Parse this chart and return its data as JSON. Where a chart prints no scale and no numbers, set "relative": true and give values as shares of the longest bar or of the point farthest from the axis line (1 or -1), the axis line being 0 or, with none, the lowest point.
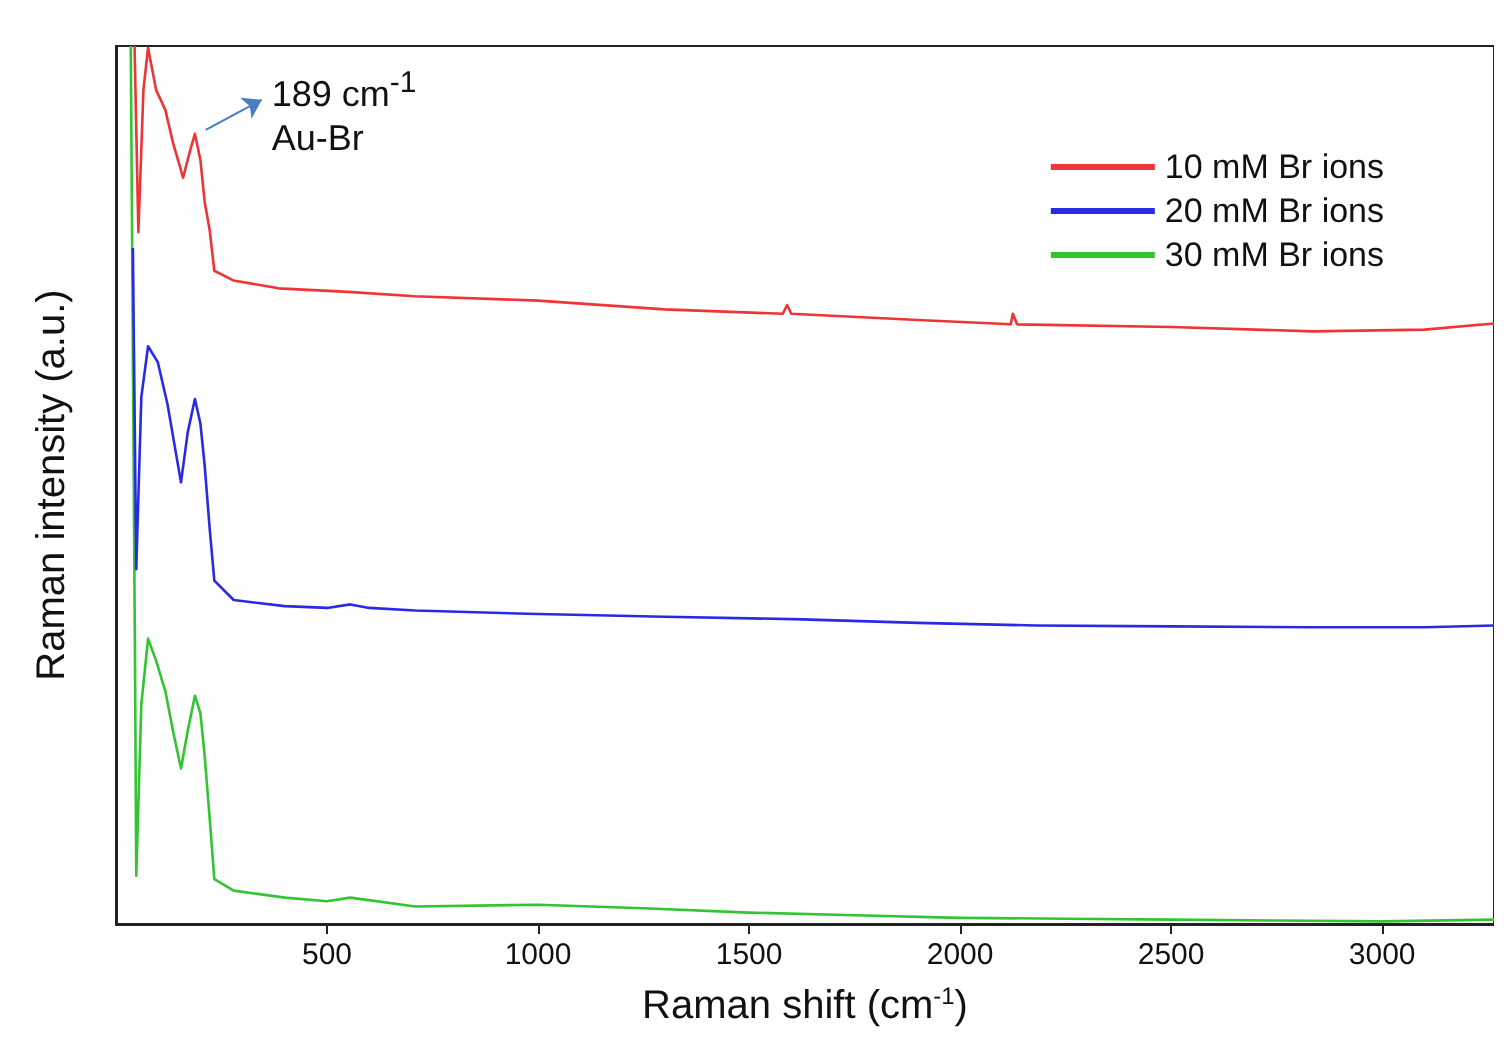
{
  "chart_data": {
    "type": "line",
    "relative": true,
    "xlabel": "Raman shift (cm$^{-1}$)",
    "ylabel": "Raman intensity (a.u.)",
    "xlim": [
      0,
      3265
    ],
    "xticks": [
      500,
      1000,
      1500,
      2000,
      2500,
      3000
    ],
    "legend": "top right",
    "grid": false,
    "marker": "none",
    "line_style": "solid",
    "annotations": [
      {
        "text": "189 cm$^{-1}$\nAu-Br",
        "x": 189,
        "y": 0.9
      }
    ],
    "series": [
      {
        "name": "30 mM Br ions",
        "color": "#33c433",
        "x": [
          35,
          45,
          48,
          60,
          76,
          95,
          117,
          135,
          154,
          170,
          187,
          200,
          210,
          222,
          233,
          279,
          400,
          500,
          555,
          709,
          1000,
          1250,
          1500,
          1750,
          2000,
          2250,
          2500,
          2750,
          3000,
          3265
        ],
        "values": [
          1.0,
          0.3,
          0.055,
          0.25,
          0.325,
          0.3,
          0.265,
          0.22,
          0.177,
          0.22,
          0.26,
          0.24,
          0.192,
          0.12,
          0.051,
          0.038,
          0.03,
          0.026,
          0.03,
          0.02,
          0.022,
          0.018,
          0.013,
          0.01,
          0.007,
          0.006,
          0.005,
          0.004,
          0.003,
          0.005
        ]
      },
      {
        "name": "20 mM Br ions",
        "color": "#2a2ae6",
        "x": [
          40,
          48,
          60,
          76,
          99,
          122,
          154,
          170,
          187,
          200,
          210,
          222,
          233,
          279,
          400,
          500,
          555,
          600,
          709,
          1000,
          1300,
          1626,
          1900,
          2180,
          2500,
          2834,
          3100,
          3265
        ],
        "values": [
          0.77,
          0.404,
          0.6,
          0.658,
          0.64,
          0.592,
          0.503,
          0.56,
          0.598,
          0.57,
          0.523,
          0.45,
          0.391,
          0.369,
          0.362,
          0.36,
          0.364,
          0.36,
          0.357,
          0.353,
          0.35,
          0.347,
          0.343,
          0.34,
          0.339,
          0.338,
          0.338,
          0.34
        ]
      },
      {
        "name": "10 mM Br ions",
        "color": "#ee3434",
        "x": [
          44,
          53,
          65,
          76,
          95,
          117,
          135,
          159,
          175,
          187,
          200,
          210,
          222,
          233,
          278,
          385,
          550,
          708,
          1000,
          1300,
          1580,
          1590,
          1600,
          1900,
          2120,
          2125,
          2135,
          2500,
          2835,
          3100,
          3265
        ],
        "values": [
          1.0,
          0.788,
          0.95,
          0.998,
          0.95,
          0.927,
          0.89,
          0.85,
          0.88,
          0.9,
          0.87,
          0.823,
          0.79,
          0.744,
          0.733,
          0.724,
          0.72,
          0.715,
          0.71,
          0.7,
          0.695,
          0.705,
          0.695,
          0.688,
          0.683,
          0.695,
          0.683,
          0.68,
          0.675,
          0.677,
          0.684
        ]
      }
    ]
  }
}
